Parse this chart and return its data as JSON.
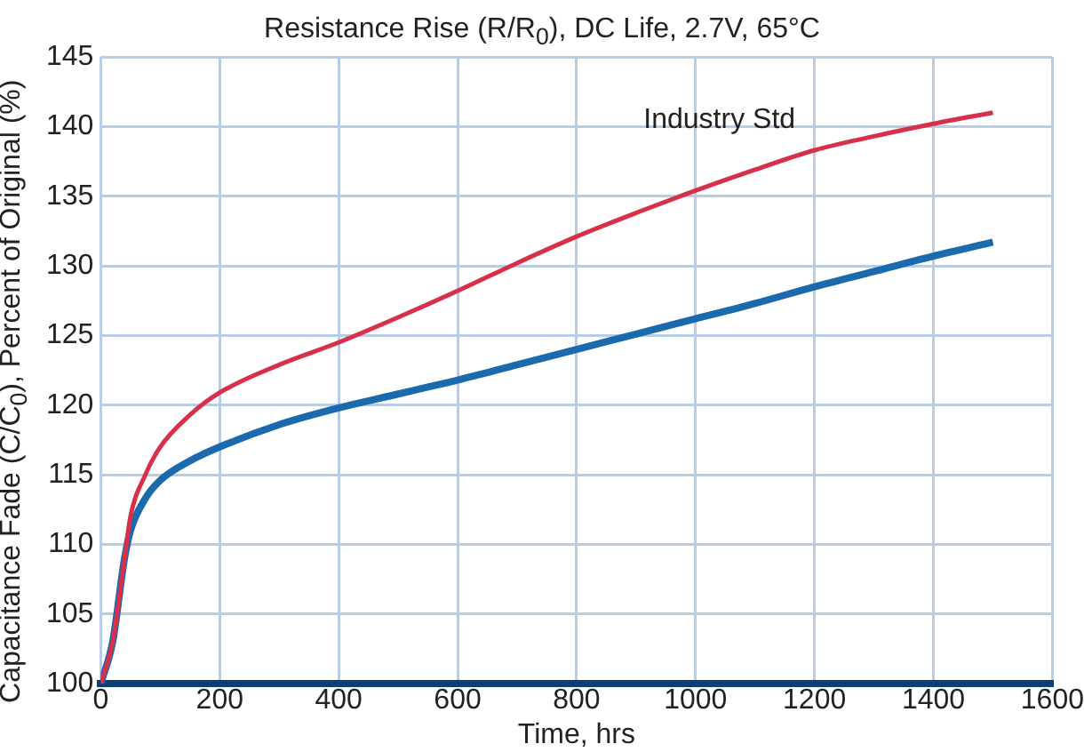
{
  "chart_data": {
    "type": "line",
    "title": "Resistance Rise (R/R$_{0}$), DC Life, 2.7V, 65°C",
    "xlabel": "Time, hrs",
    "ylabel": "Capacitance Fade (C/C$_{0}$), Percent of Original (%)",
    "xlim": [
      0,
      1600
    ],
    "xticks": [
      0,
      200,
      400,
      600,
      800,
      1000,
      1200,
      1400,
      1600
    ],
    "ylim": [
      100,
      145
    ],
    "yticks": [
      100,
      105,
      110,
      115,
      120,
      125,
      130,
      135,
      140,
      145
    ],
    "grid": true,
    "legend": false,
    "series": [
      {
        "name": "Industry Std",
        "color": "#d6304a",
        "x": [
          0,
          20,
          40,
          50,
          75,
          100,
          150,
          200,
          300,
          400,
          500,
          600,
          700,
          800,
          900,
          1000,
          1100,
          1200,
          1300,
          1400,
          1500
        ],
        "values": [
          100,
          103,
          109,
          112,
          115,
          117,
          119.3,
          120.9,
          122.9,
          124.5,
          126.3,
          128.2,
          130.2,
          132.1,
          133.8,
          135.4,
          136.9,
          138.3,
          139.3,
          140.2,
          141
        ]
      },
      {
        "color": "#1a6aad",
        "x": [
          0,
          20,
          40,
          50,
          75,
          100,
          150,
          200,
          300,
          400,
          500,
          550,
          600,
          700,
          800,
          900,
          1000,
          1100,
          1200,
          1300,
          1400,
          1500
        ],
        "values": [
          100,
          103,
          109,
          111,
          113.3,
          114.6,
          116,
          117,
          118.6,
          119.8,
          120.8,
          121.3,
          121.8,
          122.9,
          124,
          125.1,
          126.2,
          127.3,
          128.5,
          129.6,
          130.7,
          131.7
        ]
      }
    ]
  }
}
